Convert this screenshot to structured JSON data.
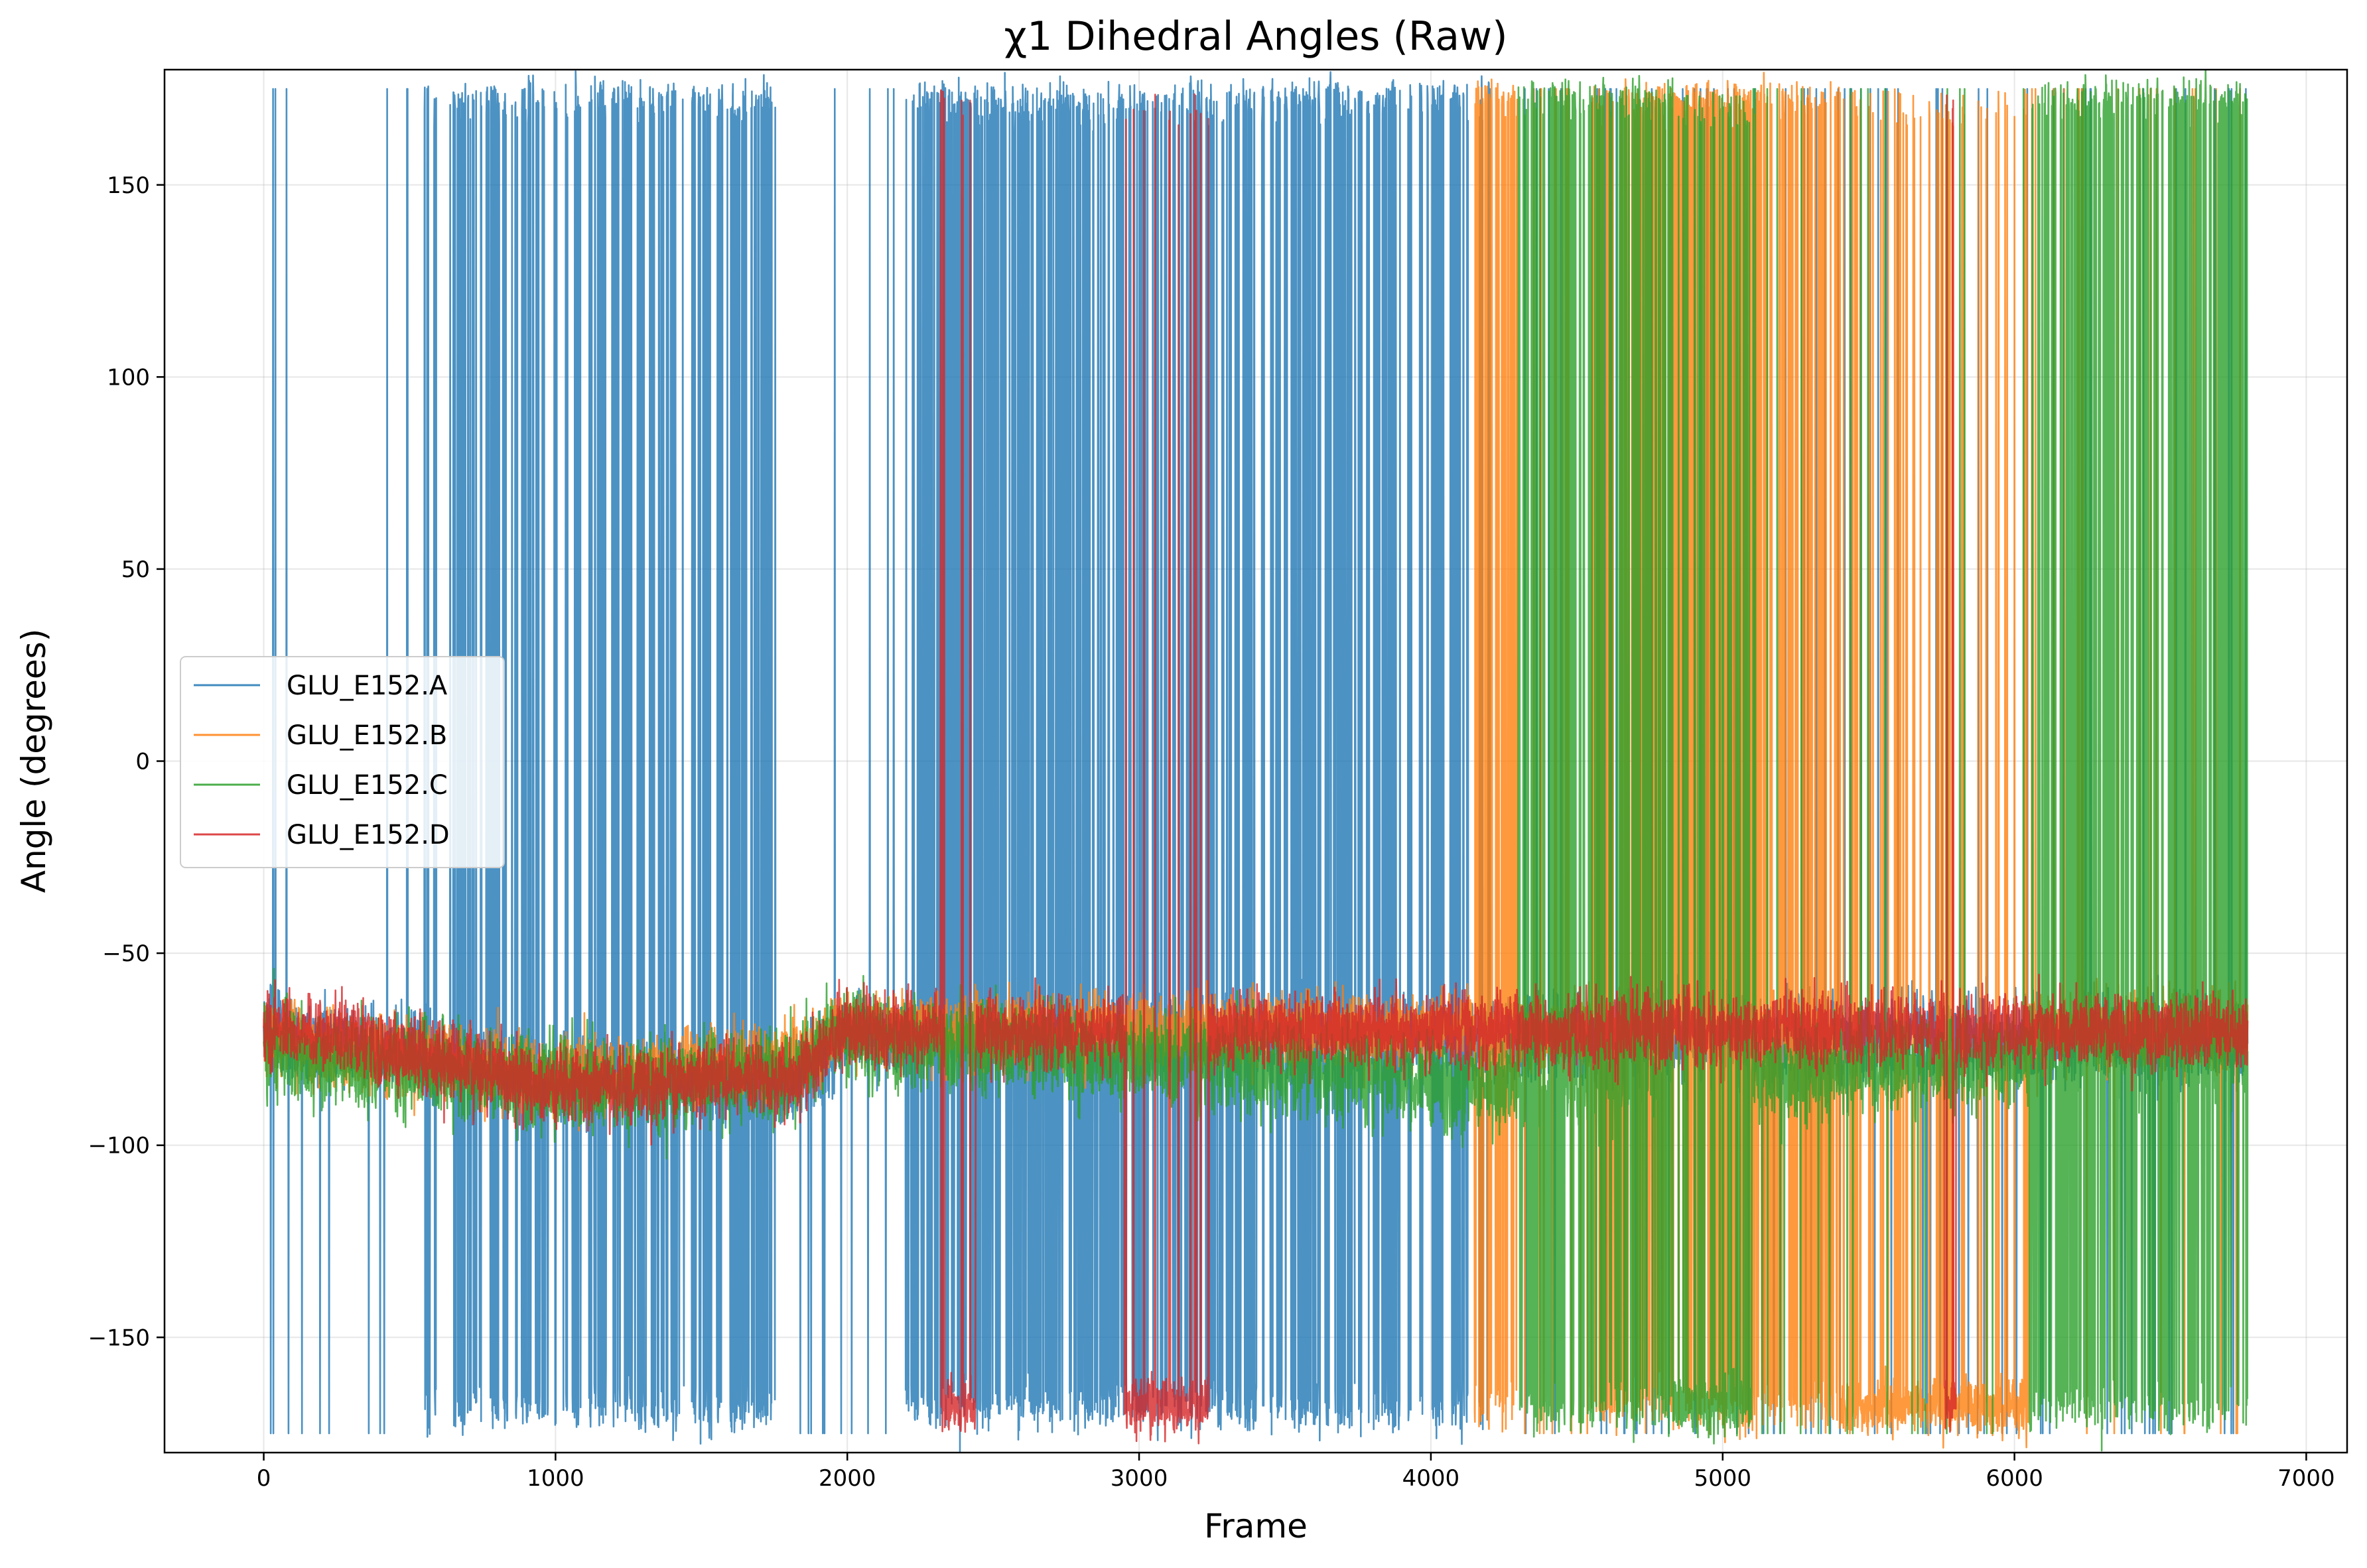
{
  "chart_data": {
    "type": "line",
    "title": "χ1 Dihedral Angles (Raw)",
    "xlabel": "Frame",
    "ylabel": "Angle (degrees)",
    "xlim": [
      -340,
      7140
    ],
    "ylim": [
      -180,
      180
    ],
    "xticks": [
      0,
      1000,
      2000,
      3000,
      4000,
      5000,
      6000,
      7000
    ],
    "yticks": [
      -150,
      -100,
      -50,
      0,
      50,
      100,
      150
    ],
    "xtick_labels": [
      "0",
      "1000",
      "2000",
      "3000",
      "4000",
      "5000",
      "6000",
      "7000"
    ],
    "ytick_labels": [
      "−150",
      "−100",
      "−50",
      "0",
      "50",
      "100",
      "150"
    ],
    "grid": true,
    "legend_position": "center-left",
    "n_frames": 6800,
    "series": [
      {
        "name": "GLU_E152.A",
        "color": "#1f77b4",
        "baseline": [
          [
            0,
            -70
          ],
          [
            1000,
            -82
          ],
          [
            1800,
            -85
          ],
          [
            2000,
            -72
          ],
          [
            6800,
            -72
          ]
        ],
        "noise": 9,
        "states": [
          {
            "from": 0,
            "to": 550,
            "mode": "g-",
            "flip_rate": 0.02
          },
          {
            "from": 550,
            "to": 1760,
            "mode": "mixed",
            "flip_rate": 0.12
          },
          {
            "from": 1760,
            "to": 2200,
            "mode": "g-",
            "flip_rate": 0.03
          },
          {
            "from": 2200,
            "to": 2950,
            "mode": "mixed",
            "flip_rate": 0.6
          },
          {
            "from": 2950,
            "to": 3350,
            "mode": "mixed",
            "flip_rate": 0.25
          },
          {
            "from": 3350,
            "to": 4200,
            "mode": "mixed",
            "flip_rate": 0.08
          },
          {
            "from": 4200,
            "to": 6800,
            "mode": "g-",
            "flip_rate": 0.04
          }
        ]
      },
      {
        "name": "GLU_E152.B",
        "color": "#ff7f0e",
        "baseline": [
          [
            0,
            -72
          ],
          [
            1000,
            -82
          ],
          [
            1800,
            -78
          ],
          [
            2000,
            -70
          ],
          [
            6800,
            -70
          ]
        ],
        "noise": 8,
        "states": [
          {
            "from": 0,
            "to": 4150,
            "mode": "g-",
            "flip_rate": 0.0
          },
          {
            "from": 4150,
            "to": 4300,
            "mode": "mixed",
            "flip_rate": 0.3
          },
          {
            "from": 4300,
            "to": 4550,
            "mode": "g-",
            "flip_rate": 0.05
          },
          {
            "from": 4550,
            "to": 5400,
            "mode": "mixed",
            "flip_rate": 0.5
          },
          {
            "from": 5400,
            "to": 6050,
            "mode": "trans",
            "flip_rate": 0.08
          },
          {
            "from": 6050,
            "to": 6800,
            "mode": "g-",
            "flip_rate": 0.03
          }
        ]
      },
      {
        "name": "GLU_E152.C",
        "color": "#2ca02c",
        "baseline": [
          [
            0,
            -75
          ],
          [
            1000,
            -85
          ],
          [
            1800,
            -82
          ],
          [
            2000,
            -72
          ],
          [
            3500,
            -80
          ],
          [
            4200,
            -85
          ],
          [
            6800,
            -75
          ]
        ],
        "noise": 10,
        "states": [
          {
            "from": 0,
            "to": 4300,
            "mode": "g-",
            "flip_rate": 0.0
          },
          {
            "from": 4300,
            "to": 4830,
            "mode": "mixed",
            "flip_rate": 0.3
          },
          {
            "from": 4830,
            "to": 5100,
            "mode": "trans",
            "flip_rate": 0.15
          },
          {
            "from": 5100,
            "to": 6050,
            "mode": "g-",
            "flip_rate": 0.03
          },
          {
            "from": 6050,
            "to": 6800,
            "mode": "mixed",
            "flip_rate": 0.55
          }
        ]
      },
      {
        "name": "GLU_E152.D",
        "color": "#d62728",
        "baseline": [
          [
            0,
            -68
          ],
          [
            1000,
            -85
          ],
          [
            1800,
            -82
          ],
          [
            2000,
            -70
          ],
          [
            6800,
            -70
          ]
        ],
        "noise": 8,
        "states": [
          {
            "from": 0,
            "to": 2320,
            "mode": "g-",
            "flip_rate": 0.0
          },
          {
            "from": 2320,
            "to": 2440,
            "mode": "trans",
            "flip_rate": 0.05
          },
          {
            "from": 2440,
            "to": 2950,
            "mode": "g-",
            "flip_rate": 0.0
          },
          {
            "from": 2950,
            "to": 3240,
            "mode": "trans",
            "flip_rate": 0.06
          },
          {
            "from": 3240,
            "to": 5760,
            "mode": "g-",
            "flip_rate": 0.0
          },
          {
            "from": 5760,
            "to": 5800,
            "mode": "trans",
            "flip_rate": 0.05
          },
          {
            "from": 5800,
            "to": 6800,
            "mode": "g-",
            "flip_rate": 0.0
          }
        ]
      }
    ]
  }
}
